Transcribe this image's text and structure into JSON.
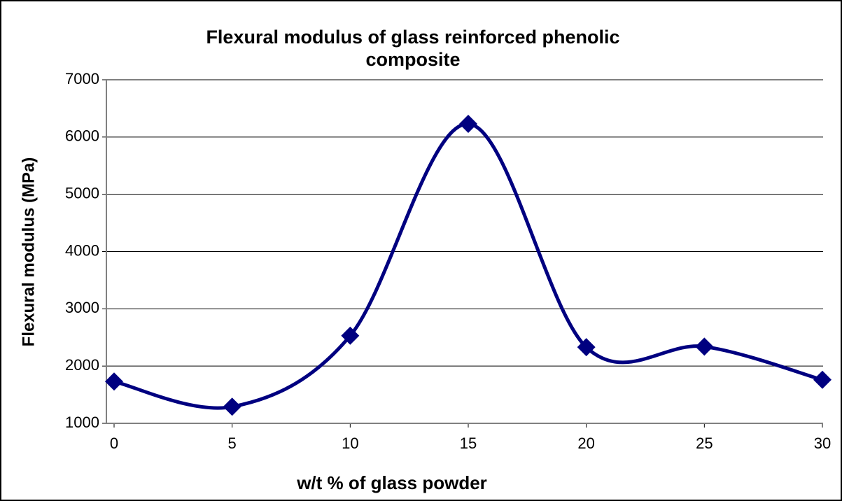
{
  "chart_data": {
    "type": "line",
    "title": "Flexural modulus of glass reinforced phenolic composite",
    "x_label": "w/t % of glass powder",
    "y_label": "Flexural modulus (MPa)",
    "x": [
      0,
      5,
      10,
      15,
      20,
      25,
      30
    ],
    "series": [
      {
        "name": "Flexural modulus",
        "color": "#000080",
        "values": [
          1730,
          1290,
          2530,
          6230,
          2330,
          2340,
          1760
        ]
      }
    ],
    "xlim": [
      0,
      30
    ],
    "xticks": [
      0,
      5,
      10,
      15,
      20,
      25,
      30
    ],
    "ylim": [
      1000,
      7000
    ],
    "yticks": [
      1000,
      2000,
      3000,
      4000,
      5000,
      6000,
      7000
    ],
    "grid": true,
    "smooth": true
  }
}
